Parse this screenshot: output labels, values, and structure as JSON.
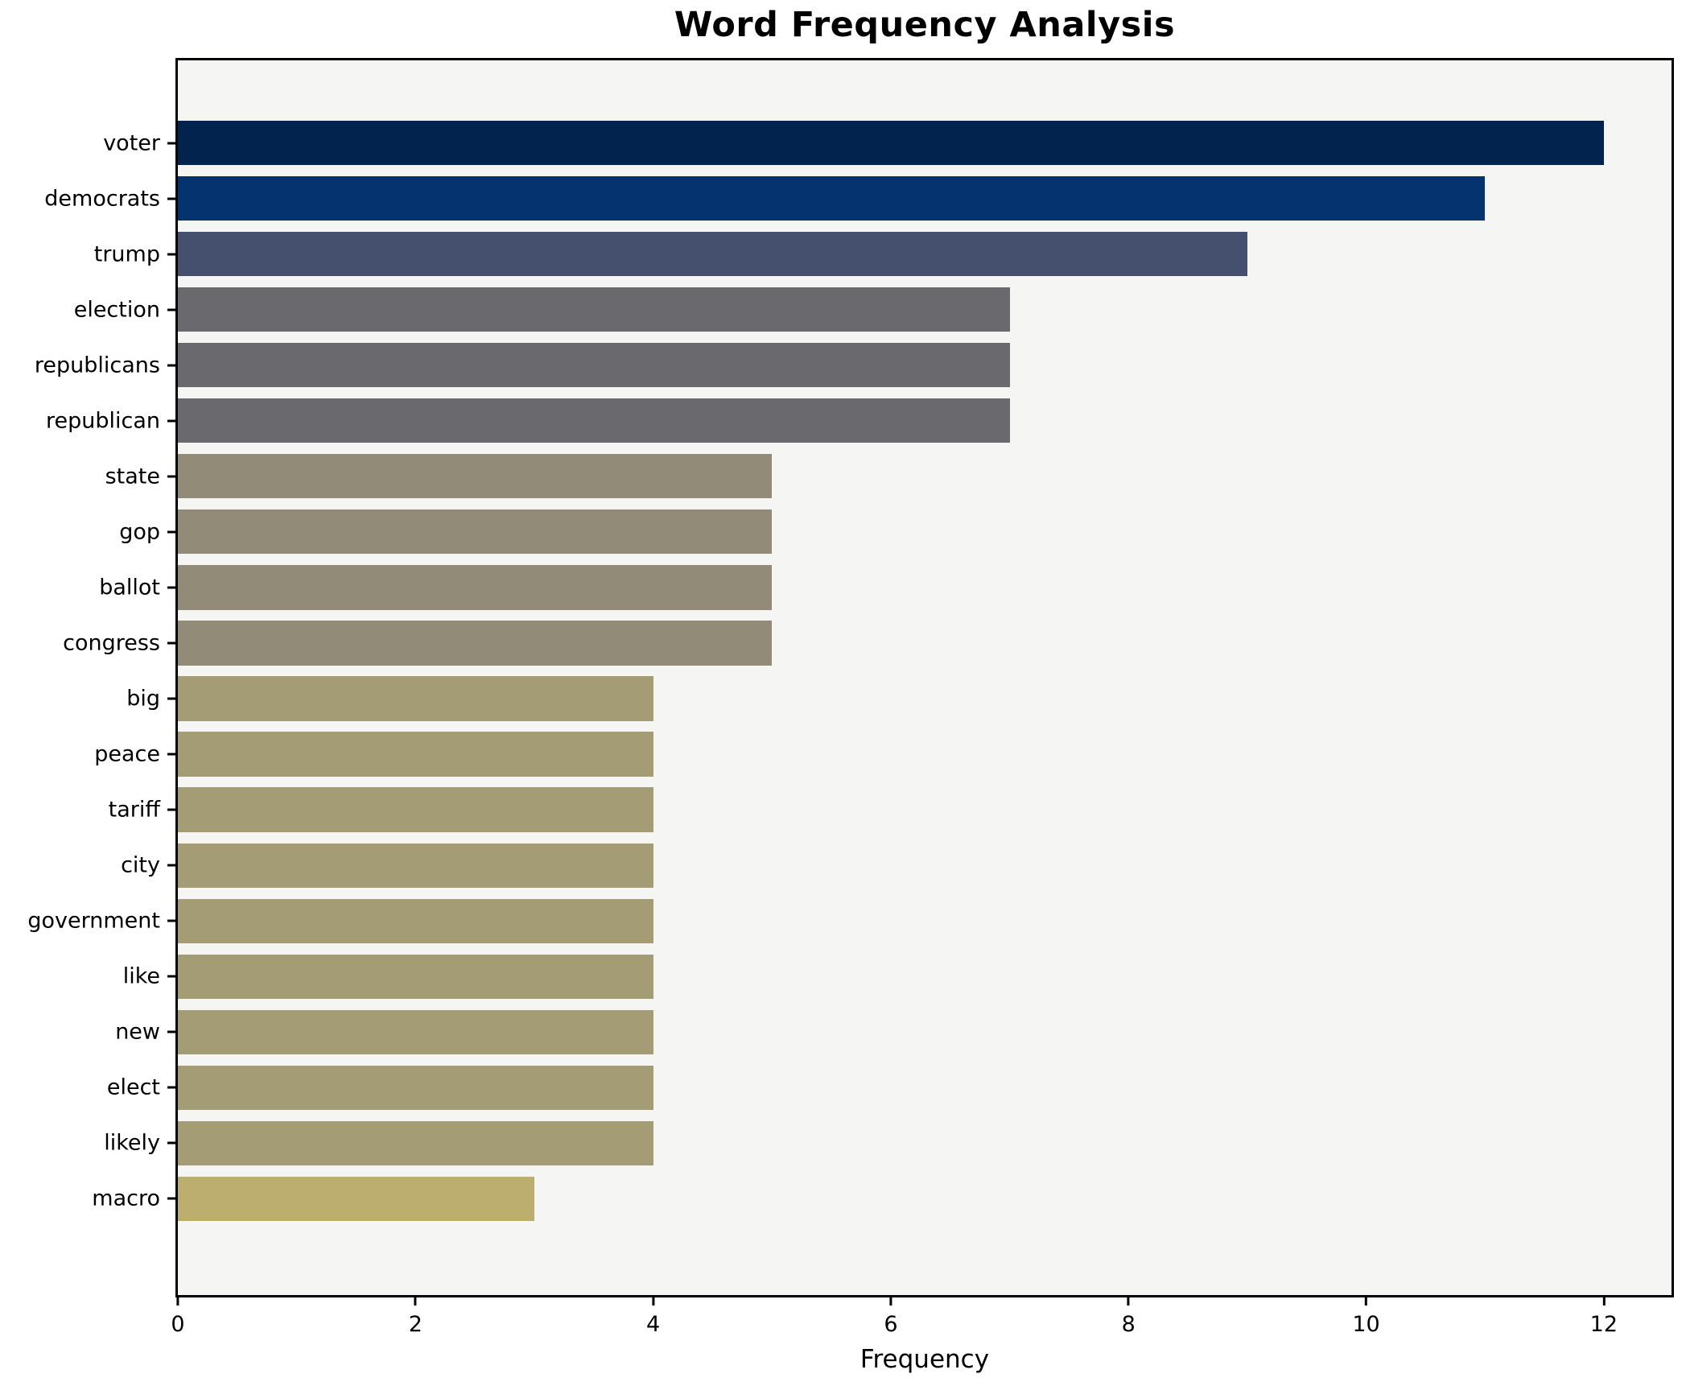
{
  "chart_data": {
    "type": "bar",
    "orientation": "horizontal",
    "title": "Word Frequency Analysis",
    "xlabel": "Frequency",
    "ylabel": "",
    "xlim": [
      0,
      12.57
    ],
    "x_ticks": [
      0,
      2,
      4,
      6,
      8,
      10,
      12
    ],
    "grid": false,
    "legend": "none",
    "categories": [
      "voter",
      "democrats",
      "trump",
      "election",
      "republicans",
      "republican",
      "state",
      "gop",
      "ballot",
      "congress",
      "big",
      "peace",
      "tariff",
      "city",
      "government",
      "like",
      "new",
      "elect",
      "likely",
      "macro"
    ],
    "values": [
      12,
      11,
      9,
      7,
      7,
      7,
      5,
      5,
      5,
      5,
      4,
      4,
      4,
      4,
      4,
      4,
      4,
      4,
      4,
      3
    ],
    "bar_colors": [
      "#02234E",
      "#053370",
      "#45506F",
      "#6A6A6E",
      "#6A6A6E",
      "#6A6A6E",
      "#918B77",
      "#918B77",
      "#918B77",
      "#918B77",
      "#A49C74",
      "#A49C74",
      "#A49C74",
      "#A49C74",
      "#A49C74",
      "#A49C74",
      "#A49C74",
      "#A49C74",
      "#A49C74",
      "#BCAE6E"
    ]
  },
  "colors": {
    "figure_background": "#FFFFFF",
    "axes_background": "#F5F5F3",
    "spine": "#000000",
    "text": "#000000"
  }
}
